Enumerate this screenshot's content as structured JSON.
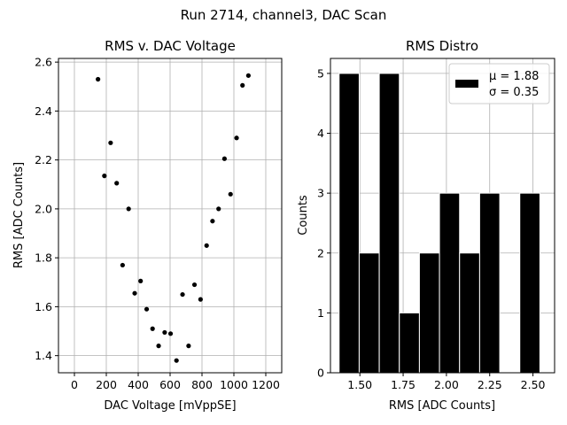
{
  "figure": {
    "suptitle": "Run 2714, channel3, DAC Scan"
  },
  "chart_data": [
    {
      "type": "scatter",
      "title": "RMS v. DAC Voltage",
      "xlabel": "DAC Voltage [mVppSE]",
      "ylabel": "RMS [ADC Counts]",
      "xlim": [
        -100,
        1300
      ],
      "ylim": [
        1.33,
        2.615
      ],
      "xticks": [
        0,
        200,
        400,
        600,
        800,
        1000,
        1200
      ],
      "yticks": [
        1.4,
        1.6,
        1.8,
        2.0,
        2.2,
        2.4,
        2.6
      ],
      "xtick_labels": [
        "0",
        "200",
        "400",
        "600",
        "800",
        "1000",
        "1200"
      ],
      "ytick_labels": [
        "1.4",
        "1.6",
        "1.8",
        "2.0",
        "2.2",
        "2.4",
        "2.6"
      ],
      "grid": true,
      "marker_color": "#000000",
      "points": [
        {
          "x": 148,
          "y": 2.53
        },
        {
          "x": 188,
          "y": 2.135
        },
        {
          "x": 227,
          "y": 2.27
        },
        {
          "x": 265,
          "y": 2.105
        },
        {
          "x": 302,
          "y": 1.77
        },
        {
          "x": 340,
          "y": 2.0
        },
        {
          "x": 378,
          "y": 1.655
        },
        {
          "x": 415,
          "y": 1.705
        },
        {
          "x": 453,
          "y": 1.59
        },
        {
          "x": 490,
          "y": 1.51
        },
        {
          "x": 528,
          "y": 1.44
        },
        {
          "x": 566,
          "y": 1.495
        },
        {
          "x": 603,
          "y": 1.49
        },
        {
          "x": 640,
          "y": 1.38
        },
        {
          "x": 678,
          "y": 1.65
        },
        {
          "x": 716,
          "y": 1.44
        },
        {
          "x": 753,
          "y": 1.69
        },
        {
          "x": 791,
          "y": 1.63
        },
        {
          "x": 829,
          "y": 1.85
        },
        {
          "x": 866,
          "y": 1.95
        },
        {
          "x": 904,
          "y": 2.0
        },
        {
          "x": 941,
          "y": 2.205
        },
        {
          "x": 979,
          "y": 2.06
        },
        {
          "x": 1017,
          "y": 2.29
        },
        {
          "x": 1054,
          "y": 2.505
        },
        {
          "x": 1091,
          "y": 2.545
        }
      ]
    },
    {
      "type": "bar",
      "title": "RMS Distro",
      "xlabel": "RMS [ADC Counts]",
      "ylabel": "Counts",
      "xlim": [
        1.33,
        2.625
      ],
      "ylim": [
        0,
        5.25
      ],
      "xticks": [
        1.5,
        1.75,
        2.0,
        2.25,
        2.5
      ],
      "yticks": [
        0,
        1,
        2,
        3,
        4,
        5
      ],
      "xtick_labels": [
        "1.50",
        "1.75",
        "2.00",
        "2.25",
        "2.50"
      ],
      "ytick_labels": [
        "0",
        "1",
        "2",
        "3",
        "4",
        "5"
      ],
      "grid": true,
      "bar_color": "#000000",
      "edge_color": "#ffffff",
      "bin_edges": [
        1.38,
        1.496,
        1.612,
        1.728,
        1.844,
        1.96,
        2.076,
        2.192,
        2.308,
        2.424,
        2.54
      ],
      "values": [
        5,
        2,
        5,
        1,
        2,
        3,
        2,
        3,
        0,
        3
      ],
      "legend": {
        "placement": "upper-right",
        "lines": [
          "μ = 1.88",
          "σ = 0.35"
        ]
      }
    }
  ]
}
